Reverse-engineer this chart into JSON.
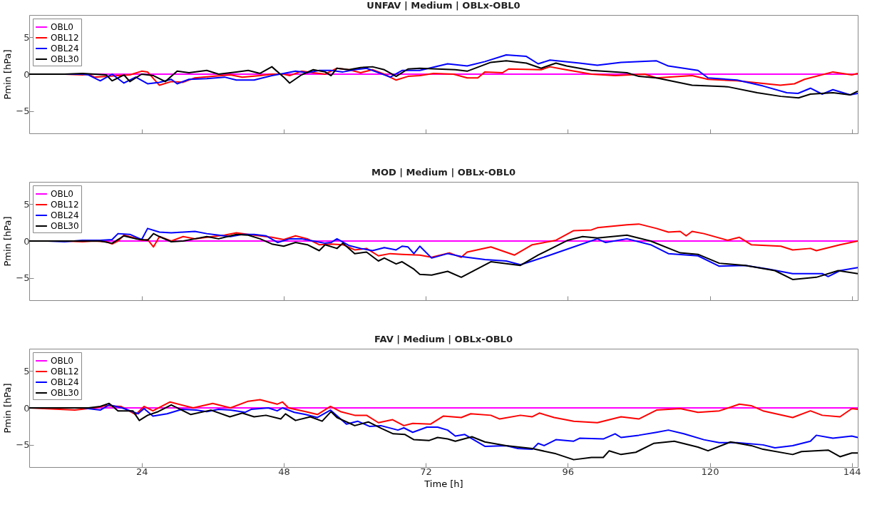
{
  "chart_data": [
    {
      "type": "line",
      "title": "UNFAV | Medium | OBLx-OBL0",
      "ylabel": "Pmin [hPa]",
      "xlim": [
        5,
        145
      ],
      "ylim": [
        -8,
        8
      ],
      "xticks": [
        24,
        48,
        72,
        96,
        120,
        144
      ],
      "yticks": [
        -5,
        0,
        5
      ],
      "tick_labels": "y",
      "legend": "top left",
      "grid": false,
      "series": [
        {
          "name": "OBL0",
          "color": "#ff00ff",
          "x": [
            5,
            145
          ],
          "values": [
            0,
            0
          ]
        },
        {
          "name": "OBL12",
          "color": "#ff0000",
          "x": [
            5,
            8,
            11,
            14,
            15,
            16,
            20,
            22,
            24,
            25,
            27,
            29,
            31,
            33,
            36,
            39,
            41,
            44,
            46,
            48,
            49,
            51,
            53,
            55,
            57,
            59,
            61,
            63,
            65,
            67,
            69,
            71,
            73.3,
            76.7,
            79,
            80.8,
            82,
            85,
            86,
            91.5,
            93,
            95,
            100,
            104,
            109,
            111,
            117,
            119.7,
            124.6,
            131.9,
            134.3,
            136,
            140.8,
            144,
            145
          ],
          "values": [
            0,
            0,
            0,
            -0.1,
            0,
            -0.4,
            -0.2,
            -0.1,
            0.4,
            0.3,
            -1.5,
            -1,
            -1.1,
            -0.5,
            -0.3,
            -0.1,
            -0.4,
            -0.2,
            0,
            0,
            -0.2,
            0.4,
            0.2,
            0,
            0.8,
            0.6,
            0.2,
            0.6,
            0,
            -0.8,
            -0.3,
            -0.2,
            0.1,
            0,
            -0.5,
            -0.5,
            0.3,
            0.2,
            0.7,
            0.6,
            1,
            0.7,
            0,
            -0.2,
            0,
            -0.5,
            -0.2,
            -0.7,
            -0.9,
            -1.5,
            -1.3,
            -0.7,
            0.3,
            -0.1,
            0.1
          ]
        },
        {
          "name": "OBL24",
          "color": "#0000ff",
          "x": [
            11,
            14,
            15,
            17,
            19,
            21,
            23,
            25,
            27,
            29,
            30,
            32,
            35,
            38,
            40,
            43,
            46,
            48,
            50,
            52,
            54,
            56,
            58,
            60,
            62,
            64,
            66,
            68,
            71,
            75.7,
            79,
            82,
            85.6,
            89,
            91,
            93,
            98,
            101,
            105,
            111,
            113,
            118,
            119.7,
            124.6,
            129,
            133,
            134.9,
            137,
            139,
            140.8,
            143.7,
            145
          ],
          "values": [
            0,
            0,
            -0.1,
            -0.9,
            0,
            -1.2,
            -0.4,
            -1.3,
            -1.1,
            -0.7,
            -1.3,
            -0.7,
            -0.6,
            -0.4,
            -0.8,
            -0.8,
            -0.2,
            0.1,
            0.4,
            0.2,
            0.5,
            0.5,
            0.3,
            0.6,
            0.8,
            0.2,
            -0.4,
            0.5,
            0.5,
            1.4,
            1.1,
            1.7,
            2.6,
            2.4,
            1.4,
            1.9,
            1.5,
            1.2,
            1.6,
            1.8,
            1.1,
            0.5,
            -0.5,
            -0.8,
            -1.6,
            -2.5,
            -2.6,
            -1.9,
            -2.7,
            -2.1,
            -2.8,
            -2.6
          ]
        },
        {
          "name": "OBL30",
          "color": "#000000",
          "x": [
            5,
            8,
            11,
            14,
            16,
            18,
            19,
            21,
            22,
            24,
            26,
            28,
            29,
            30,
            32,
            35,
            37,
            40,
            42,
            44,
            46,
            48,
            49,
            51,
            53,
            55,
            56,
            57,
            59,
            61,
            63,
            65,
            67,
            69,
            71,
            77,
            79,
            83,
            85.6,
            89,
            91.5,
            94,
            95.8,
            100,
            106,
            108,
            111,
            117,
            123,
            128,
            132,
            135,
            137,
            140.8,
            143.7,
            145
          ],
          "values": [
            0,
            0,
            0,
            0.1,
            0,
            -0.1,
            -0.9,
            -0.1,
            -1,
            0,
            -0.2,
            -1,
            -0.3,
            0.4,
            0.2,
            0.5,
            0,
            0.3,
            0.5,
            0.1,
            1,
            -0.4,
            -1.2,
            -0.1,
            0.6,
            0.3,
            -0.2,
            0.8,
            0.6,
            0.9,
            1,
            0.6,
            -0.3,
            0.7,
            0.8,
            0.6,
            0.4,
            1.6,
            1.8,
            1.5,
            0.8,
            1.5,
            1.1,
            0.5,
            0.2,
            -0.3,
            -0.5,
            -1.5,
            -1.7,
            -2.5,
            -3,
            -3.2,
            -2.7,
            -2.5,
            -2.8,
            -2.3
          ]
        }
      ]
    },
    {
      "type": "line",
      "title": "MOD | Medium | OBLx-OBL0",
      "ylabel": "Pmin [hPa]",
      "xlim": [
        5,
        145
      ],
      "ylim": [
        -8,
        8
      ],
      "xticks": [
        24,
        48,
        72,
        96,
        120,
        144
      ],
      "yticks": [
        -5,
        0,
        5
      ],
      "tick_labels": "y",
      "legend": "top left",
      "grid": false,
      "series": [
        {
          "name": "OBL0",
          "color": "#ff00ff",
          "x": [
            5,
            145
          ],
          "values": [
            0,
            0
          ]
        },
        {
          "name": "OBL12",
          "color": "#ff0000",
          "x": [
            5,
            8,
            11,
            14,
            16,
            18,
            19,
            20,
            21,
            23,
            24,
            25,
            26,
            27,
            29,
            31,
            33,
            35,
            38,
            40,
            42,
            44,
            46,
            48,
            50,
            52,
            54,
            56,
            58,
            60,
            62,
            64,
            66,
            68,
            71,
            73,
            76,
            78,
            79,
            83,
            87,
            90,
            94,
            97,
            100,
            101,
            106,
            108,
            111,
            113,
            115,
            116,
            117,
            119,
            123,
            125,
            127,
            132,
            134,
            137,
            138,
            142,
            145
          ],
          "values": [
            0,
            0,
            0,
            -0.1,
            0,
            -0.1,
            -0.4,
            0,
            0.8,
            0.4,
            0.1,
            0.2,
            -0.8,
            0.6,
            0,
            0.6,
            0.3,
            0.5,
            0.8,
            1.1,
            0.9,
            0.7,
            0.5,
            0.2,
            0.7,
            0.3,
            -0.5,
            -0.4,
            -0.5,
            -1.2,
            -1,
            -2,
            -1.7,
            -1.8,
            -1.9,
            -2.2,
            -1.6,
            -2.2,
            -1.5,
            -0.8,
            -1.9,
            -0.5,
            0.1,
            1.4,
            1.5,
            1.8,
            2.2,
            2.3,
            1.7,
            1.2,
            1.3,
            0.7,
            1.3,
            1,
            0.1,
            0.5,
            -0.5,
            -0.7,
            -1.2,
            -1,
            -1.3,
            -0.5,
            0
          ]
        },
        {
          "name": "OBL24",
          "color": "#0000ff",
          "x": [
            5,
            8,
            11,
            14,
            17,
            19,
            20,
            22,
            24,
            25,
            27,
            29,
            31,
            33,
            35,
            37,
            39,
            41,
            43,
            45,
            47,
            49,
            51,
            53,
            55,
            56,
            57,
            59,
            61,
            63,
            65,
            67,
            68,
            69,
            70,
            71,
            73,
            75.7,
            78,
            82,
            85.6,
            88,
            90,
            93,
            97,
            101,
            102.4,
            106,
            110,
            113,
            118,
            121.6,
            126,
            130,
            134,
            139,
            140,
            142,
            145
          ],
          "values": [
            0,
            0,
            -0.1,
            0.1,
            0.1,
            0.2,
            1,
            0.9,
            0.2,
            1.7,
            1.2,
            1.1,
            1.2,
            1.3,
            1,
            0.8,
            0.6,
            0.9,
            0.9,
            0.7,
            -0.2,
            0.3,
            0.3,
            0,
            -0.3,
            -0.2,
            0.3,
            -0.6,
            -1,
            -1.3,
            -0.9,
            -1.2,
            -0.7,
            -0.8,
            -1.7,
            -0.7,
            -2.3,
            -1.7,
            -2.1,
            -2.5,
            -2.7,
            -3.2,
            -2.7,
            -1.9,
            -0.8,
            0.3,
            -0.2,
            0.3,
            -0.5,
            -1.7,
            -2,
            -3.4,
            -3.3,
            -3.8,
            -4.4,
            -4.4,
            -4.8,
            -4,
            -3.6
          ]
        },
        {
          "name": "OBL30",
          "color": "#000000",
          "x": [
            5,
            8,
            11,
            14,
            17,
            19,
            21,
            23,
            25,
            26,
            27,
            29,
            31,
            33,
            35,
            37,
            39,
            40,
            42,
            44,
            46,
            48,
            50,
            52,
            54,
            55,
            57,
            58,
            60,
            62,
            64,
            65,
            67,
            68,
            70,
            71,
            73,
            75.7,
            78,
            83,
            88,
            91,
            96,
            98.5,
            101,
            106,
            110,
            115,
            118,
            121.6,
            126,
            131,
            134,
            138,
            141.7,
            145
          ],
          "values": [
            0,
            0,
            0,
            0,
            0,
            -0.3,
            0.7,
            0.3,
            0.1,
            1,
            0.6,
            -0.1,
            0,
            0.3,
            0.6,
            0.3,
            0.7,
            0.9,
            0.8,
            0.3,
            -0.4,
            -0.7,
            -0.2,
            -0.5,
            -1.3,
            -0.5,
            -1,
            -0.3,
            -1.7,
            -1.5,
            -2.7,
            -2.3,
            -3.1,
            -2.8,
            -3.8,
            -4.5,
            -4.6,
            -4.1,
            -4.9,
            -2.8,
            -3.3,
            -1.9,
            0.1,
            0.6,
            0.4,
            0.8,
            0,
            -1.6,
            -1.8,
            -3,
            -3.3,
            -4,
            -5.2,
            -4.9,
            -4,
            -4.4
          ]
        }
      ]
    },
    {
      "type": "line",
      "title": "FAV | Medium | OBLx-OBL0",
      "xlabel": "Time [h]",
      "ylabel": "Pmin [hPa]",
      "xlim": [
        5,
        145
      ],
      "ylim": [
        -8,
        8
      ],
      "xticks": [
        24,
        48,
        72,
        96,
        120,
        144
      ],
      "yticks": [
        -5,
        0,
        5
      ],
      "legend": "top left",
      "grid": false,
      "series": [
        {
          "name": "OBL0",
          "color": "#ff00ff",
          "x": [
            5,
            145
          ],
          "values": [
            0,
            0
          ]
        },
        {
          "name": "OBL12",
          "color": "#ff0000",
          "x": [
            5,
            12.7,
            16,
            18,
            20.5,
            23,
            24.4,
            25.9,
            28.8,
            32.7,
            36,
            39,
            42,
            44,
            46.9,
            47.8,
            48.8,
            51.7,
            53.7,
            55.9,
            57.6,
            60,
            62,
            64,
            66.4,
            68.3,
            69.8,
            72.8,
            75,
            78,
            79.6,
            83,
            84.5,
            88,
            90,
            91.2,
            93.7,
            97,
            101,
            105,
            108,
            111,
            115,
            118,
            121.6,
            123.5,
            125,
            127,
            129,
            134,
            137,
            139,
            142,
            144,
            145
          ],
          "values": [
            0,
            -0.3,
            0,
            0.3,
            0.2,
            -0.9,
            0.2,
            -0.4,
            0.8,
            0,
            0.6,
            0,
            0.9,
            1.1,
            0.5,
            0.8,
            0,
            -0.5,
            -0.9,
            0.2,
            -0.5,
            -1,
            -1,
            -2,
            -1.6,
            -2.4,
            -2.1,
            -2.2,
            -1.1,
            -1.3,
            -0.8,
            -1,
            -1.5,
            -1,
            -1.2,
            -0.7,
            -1.3,
            -1.8,
            -2,
            -1.2,
            -1.5,
            -0.3,
            -0.1,
            -0.6,
            -0.4,
            0.1,
            0.5,
            0.3,
            -0.4,
            -1.3,
            -0.4,
            -1,
            -1.2,
            -0.1,
            -0.2
          ]
        },
        {
          "name": "OBL24",
          "color": "#0000ff",
          "x": [
            5,
            14,
            17,
            18.5,
            20.7,
            23.4,
            24.4,
            25.9,
            28.3,
            30.8,
            33.2,
            35,
            37,
            39,
            41.5,
            42.5,
            45.4,
            46.9,
            47.8,
            49.8,
            51.7,
            53.7,
            55.9,
            58.6,
            60.5,
            62.5,
            64.4,
            67.3,
            68.3,
            69.8,
            72.2,
            74,
            75.7,
            77,
            78.6,
            82,
            85.6,
            87.6,
            90,
            91,
            92,
            94,
            97,
            98,
            102,
            104,
            105,
            108,
            111,
            113,
            115.6,
            119,
            121.6,
            124.6,
            129,
            131,
            134,
            137,
            138,
            140.8,
            144,
            145
          ],
          "values": [
            0,
            0,
            -0.3,
            0.4,
            0,
            -0.8,
            -0.1,
            -1.1,
            -0.8,
            -0.2,
            -0.3,
            -0.5,
            -0.2,
            -0.3,
            -0.6,
            -0.2,
            0,
            -0.4,
            0,
            -0.6,
            -0.9,
            -1.3,
            -0.3,
            -2.2,
            -1.8,
            -2.5,
            -2.4,
            -3,
            -2.7,
            -3.3,
            -2.6,
            -2.6,
            -3,
            -3.8,
            -3.6,
            -5.2,
            -5.1,
            -5.5,
            -5.6,
            -4.8,
            -5.1,
            -4.3,
            -4.5,
            -4.1,
            -4.2,
            -3.5,
            -4,
            -3.7,
            -3.3,
            -3,
            -3.5,
            -4.3,
            -4.7,
            -4.7,
            -5,
            -5.4,
            -5.1,
            -4.5,
            -3.7,
            -4.1,
            -3.8,
            -4
          ]
        },
        {
          "name": "OBL30",
          "color": "#000000",
          "x": [
            5,
            15,
            17,
            18.5,
            20,
            22.5,
            23.6,
            25,
            26.8,
            29,
            32.3,
            35.7,
            38.9,
            41,
            43,
            45,
            47.5,
            48.3,
            50,
            52.5,
            54.5,
            56,
            57,
            60,
            62.3,
            64.6,
            66.5,
            68.5,
            70,
            72.6,
            74,
            75.7,
            77,
            79.8,
            82,
            85.6,
            90,
            94,
            97,
            100,
            102,
            103,
            105,
            107.5,
            110.5,
            114,
            118,
            119.7,
            123.5,
            127,
            129,
            134,
            135.5,
            140,
            142,
            144,
            145
          ],
          "values": [
            0,
            0,
            0.2,
            0.6,
            -0.4,
            -0.4,
            -1.7,
            -1,
            -0.5,
            0.4,
            -0.9,
            -0.3,
            -1.2,
            -0.7,
            -1.2,
            -1,
            -1.5,
            -0.8,
            -1.7,
            -1.2,
            -1.8,
            -0.5,
            -1.3,
            -2.4,
            -1.9,
            -2.8,
            -3.5,
            -3.6,
            -4.3,
            -4.4,
            -4,
            -4.2,
            -4.5,
            -3.9,
            -4.6,
            -5.1,
            -5.5,
            -6.2,
            -7,
            -6.7,
            -6.7,
            -5.8,
            -6.3,
            -6,
            -4.8,
            -4.5,
            -5.3,
            -5.8,
            -4.6,
            -5.1,
            -5.6,
            -6.3,
            -5.9,
            -5.7,
            -6.6,
            -6.1,
            -6.1
          ]
        }
      ]
    }
  ]
}
